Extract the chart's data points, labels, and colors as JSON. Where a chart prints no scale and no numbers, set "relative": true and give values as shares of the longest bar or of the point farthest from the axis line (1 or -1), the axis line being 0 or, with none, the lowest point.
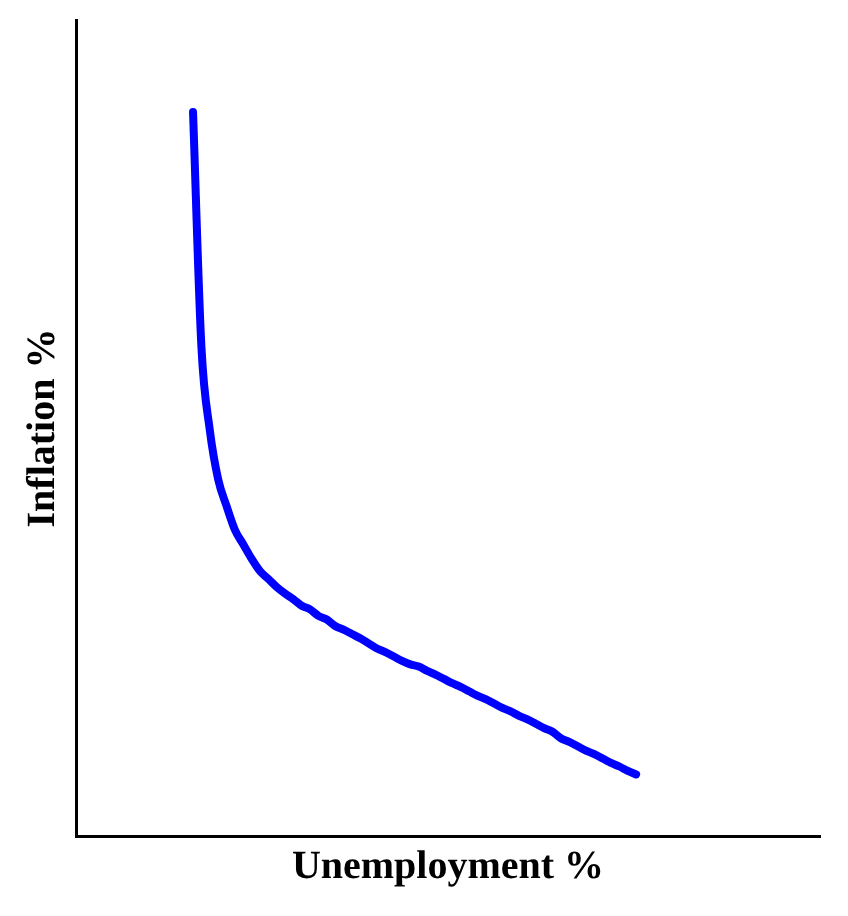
{
  "chart_data": {
    "type": "line",
    "xlabel": "Unemployment %",
    "ylabel": "Inflation %",
    "relative": true,
    "grid": false,
    "legend": false,
    "marker": "none",
    "line_style": "solid",
    "categories": [
      null,
      null,
      null,
      null,
      null,
      null,
      null,
      null,
      null,
      null,
      null,
      null,
      null,
      null,
      null,
      null,
      null,
      null,
      null,
      null,
      null,
      null,
      null,
      null,
      null,
      null,
      null,
      null,
      null,
      null,
      null,
      null,
      null,
      null,
      null,
      null,
      null,
      null,
      null,
      null,
      null,
      null,
      null,
      null,
      null,
      null,
      null,
      null,
      null,
      null,
      null,
      null,
      null,
      null,
      null,
      null,
      null,
      null,
      null,
      null,
      null,
      null,
      null,
      null,
      null,
      null,
      null,
      null,
      null,
      null,
      null,
      null,
      null,
      null,
      null,
      null,
      null,
      null,
      null,
      null,
      null,
      null,
      null,
      null,
      null,
      null,
      null,
      null,
      null,
      null
    ],
    "series": [
      {
        "color": "#0000ff",
        "values": [
          null,
          null,
          null,
          null,
          null,
          null,
          null,
          null,
          null,
          null,
          null,
          null,
          null,
          null,
          1,
          0.676,
          0.561,
          0.493,
          0.456,
          0.423,
          0.403,
          0.383,
          0.366,
          0.355,
          0.344,
          0.335,
          0.327,
          0.318,
          0.313,
          0.304,
          0.299,
          0.29,
          0.285,
          0.279,
          0.273,
          0.266,
          0.259,
          0.254,
          0.248,
          0.242,
          0.237,
          0.234,
          0.228,
          0.223,
          0.217,
          0.211,
          0.206,
          0.2,
          0.194,
          0.189,
          0.183,
          0.177,
          0.172,
          0.166,
          0.161,
          0.155,
          0.149,
          0.144,
          0.135,
          0.13,
          0.124,
          0.118,
          0.113,
          0.107,
          0.101,
          0.096,
          0.09,
          0.085,
          null,
          null,
          null,
          null,
          null,
          null,
          null,
          null,
          null,
          null,
          null,
          null,
          null,
          null,
          null,
          null,
          null,
          null,
          null,
          null,
          null,
          null
        ]
      }
    ]
  }
}
